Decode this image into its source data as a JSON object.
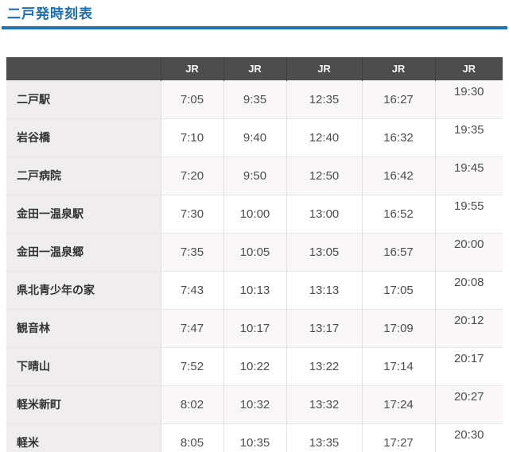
{
  "page": {
    "title": "二戸発時刻表"
  },
  "colors": {
    "accent_blue": "#1a6cb4",
    "rule_blue": "#1e73b8",
    "header_bg": "#4d4d4d",
    "header_text": "#f5f5f5",
    "station_cell_bg": "#efeded",
    "row_stripe_bg": "#f9f7f7",
    "row_plain_bg": "#ffffff"
  },
  "table": {
    "header": {
      "station_label": "",
      "columns": [
        "JR",
        "JR",
        "JR",
        "JR",
        "JR"
      ]
    },
    "rows": [
      {
        "station": "二戸駅",
        "times": [
          "7:05",
          "9:35",
          "12:35",
          "16:27",
          "19:30"
        ]
      },
      {
        "station": "岩谷橋",
        "times": [
          "7:10",
          "9:40",
          "12:40",
          "16:32",
          "19:35"
        ]
      },
      {
        "station": "二戸病院",
        "times": [
          "7:20",
          "9:50",
          "12:50",
          "16:42",
          "19:45"
        ]
      },
      {
        "station": "金田一温泉駅",
        "times": [
          "7:30",
          "10:00",
          "13:00",
          "16:52",
          "19:55"
        ]
      },
      {
        "station": "金田一温泉郷",
        "times": [
          "7:35",
          "10:05",
          "13:05",
          "16:57",
          "20:00"
        ]
      },
      {
        "station": "県北青少年の家",
        "times": [
          "7:43",
          "10:13",
          "13:13",
          "17:05",
          "20:08"
        ]
      },
      {
        "station": "観音林",
        "times": [
          "7:47",
          "10:17",
          "13:17",
          "17:09",
          "20:12"
        ]
      },
      {
        "station": "下晴山",
        "times": [
          "7:52",
          "10:22",
          "13:22",
          "17:14",
          "20:17"
        ]
      },
      {
        "station": "軽米新町",
        "times": [
          "8:02",
          "10:32",
          "13:32",
          "17:24",
          "20:27"
        ]
      },
      {
        "station": "軽米",
        "times": [
          "8:05",
          "10:35",
          "13:35",
          "17:27",
          "20:30"
        ]
      }
    ]
  }
}
